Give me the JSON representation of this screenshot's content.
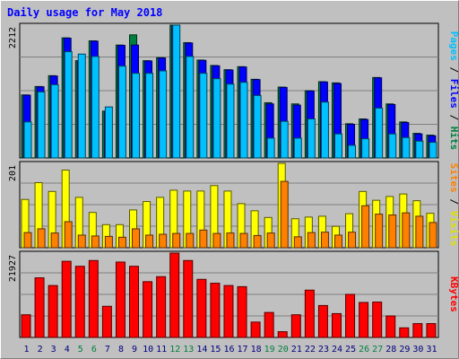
{
  "chart_data": [
    {
      "type": "bar",
      "title": "Daily usage for May 2018",
      "panel": "hits-files-pages",
      "y_tick_label": "2212",
      "categories": [
        "1",
        "2",
        "3",
        "4",
        "5",
        "6",
        "7",
        "8",
        "9",
        "10",
        "11",
        "12",
        "13",
        "14",
        "15",
        "16",
        "17",
        "18",
        "19",
        "20",
        "21",
        "22",
        "23",
        "24",
        "25",
        "26",
        "27",
        "28",
        "29",
        "30",
        "31"
      ],
      "weekend_days": [
        "5",
        "6",
        "12",
        "13",
        "19",
        "20",
        "26",
        "27"
      ],
      "ylim": [
        0,
        2212
      ],
      "series": [
        {
          "name": "Hits",
          "color": "#008040",
          "values": [
            1050,
            1190,
            1370,
            2000,
            1620,
            1950,
            780,
            1880,
            2050,
            1620,
            1670,
            2212,
            1920,
            1630,
            1540,
            1470,
            1520,
            1310,
            920,
            1180,
            900,
            1120,
            1270,
            1250,
            570,
            650,
            1340,
            900,
            600,
            410,
            380
          ]
        },
        {
          "name": "Files",
          "color": "#0000ff",
          "values": [
            1045,
            1185,
            1365,
            1995,
            1615,
            1945,
            775,
            1875,
            1880,
            1615,
            1665,
            2208,
            1915,
            1625,
            1535,
            1465,
            1515,
            1305,
            900,
            1175,
            880,
            1115,
            1265,
            1240,
            560,
            640,
            1335,
            890,
            590,
            400,
            370
          ]
        },
        {
          "name": "Pages",
          "color": "#00c0ff",
          "values": [
            600,
            1100,
            1220,
            1770,
            1730,
            1690,
            850,
            1530,
            1410,
            1410,
            1450,
            2212,
            1690,
            1410,
            1320,
            1230,
            1260,
            1040,
            330,
            610,
            330,
            650,
            930,
            400,
            210,
            320,
            830,
            400,
            340,
            280,
            260
          ]
        }
      ]
    },
    {
      "type": "bar",
      "panel": "visits-sites",
      "y_tick_label": "201",
      "categories": [
        "1",
        "2",
        "3",
        "4",
        "5",
        "6",
        "7",
        "8",
        "9",
        "10",
        "11",
        "12",
        "13",
        "14",
        "15",
        "16",
        "17",
        "18",
        "19",
        "20",
        "21",
        "22",
        "23",
        "24",
        "25",
        "26",
        "27",
        "28",
        "29",
        "30",
        "31"
      ],
      "ylim": [
        0,
        201
      ],
      "series": [
        {
          "name": "Visits",
          "color": "#ffff00",
          "values": [
            115,
            155,
            134,
            185,
            120,
            84,
            55,
            55,
            90,
            110,
            120,
            137,
            135,
            135,
            148,
            135,
            105,
            88,
            72,
            201,
            69,
            73,
            75,
            51,
            81,
            134,
            113,
            122,
            128,
            112,
            82
          ]
        },
        {
          "name": "Sites",
          "color": "#ff8000",
          "values": [
            36,
            45,
            35,
            62,
            30,
            28,
            27,
            25,
            45,
            30,
            32,
            34,
            34,
            42,
            34,
            35,
            34,
            29,
            35,
            158,
            26,
            36,
            37,
            30,
            37,
            100,
            80,
            78,
            83,
            75,
            60
          ]
        }
      ]
    },
    {
      "type": "bar",
      "panel": "kbytes",
      "y_tick_label": "21927",
      "categories": [
        "1",
        "2",
        "3",
        "4",
        "5",
        "6",
        "7",
        "8",
        "9",
        "10",
        "11",
        "12",
        "13",
        "14",
        "15",
        "16",
        "17",
        "18",
        "19",
        "20",
        "21",
        "22",
        "23",
        "24",
        "25",
        "26",
        "27",
        "28",
        "29",
        "30",
        "31"
      ],
      "ylim": [
        0,
        21927
      ],
      "series": [
        {
          "name": "KBytes",
          "color": "#ff0000",
          "values": [
            5900,
            15500,
            13500,
            19800,
            18500,
            20000,
            8100,
            19600,
            18500,
            14500,
            15800,
            21927,
            20000,
            15100,
            14100,
            13500,
            13200,
            4000,
            6500,
            1500,
            5900,
            12300,
            8300,
            6200,
            11200,
            9100,
            9200,
            5600,
            2500,
            3600,
            3600
          ]
        }
      ]
    }
  ],
  "colors": {
    "background": "#c0c0c0",
    "title": "#0000ff",
    "axis_text_dark": "#000080",
    "weekend_label": "#008040",
    "weekday_label": "#000080"
  }
}
